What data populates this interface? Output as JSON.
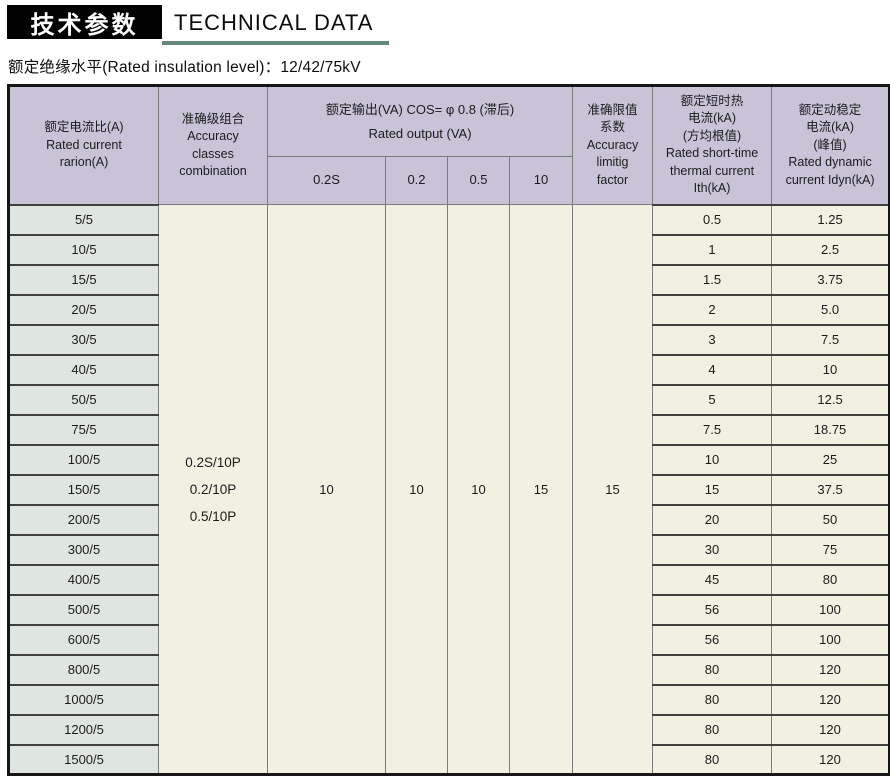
{
  "page": {
    "title_cn": "技术参数",
    "title_en": "TECHNICAL DATA",
    "subtitle": "额定绝缘水平(Rated insulation level)：12/42/75kV"
  },
  "colors": {
    "header_bg": "#c9c3d8",
    "ratio_col_bg": "#dfe6df",
    "body_cell_bg": "#f1f0e1",
    "accent_underline": "#5f8a7d",
    "title_box_bg": "#000000"
  },
  "table": {
    "headers": {
      "ratio": "额定电流比(A)\nRated current\nrarion(A)",
      "accuracy_classes": "准确级组合\nAccuracy\nclasses\ncombination",
      "output_group": "额定输出(VA) COS= φ 0.8 (滞后)\nRated output (VA)",
      "output_subs": [
        "0.2S",
        "0.2",
        "0.5",
        "10"
      ],
      "accuracy_limit_factor": "准确限值\n系数\nAccuracy\nlimitig\nfactor",
      "thermal": "额定短时热\n电流(kA)\n(方均根值)\nRated short-time\nthermal current\nIth(kA)",
      "dynamic": "额定动稳定\n电流(kA)\n(峰值)\nRated dynamic\ncurrent Idyn(kA)"
    },
    "merged": {
      "accuracy_combination": "0.2S/10P\n0.2/10P\n0.5/10P",
      "outputs": [
        "10",
        "10",
        "10",
        "15"
      ],
      "accuracy_limit_factor": "15"
    },
    "rows": [
      {
        "ratio": "5/5",
        "ith": "0.5",
        "idyn": "1.25"
      },
      {
        "ratio": "10/5",
        "ith": "1",
        "idyn": "2.5"
      },
      {
        "ratio": "15/5",
        "ith": "1.5",
        "idyn": "3.75"
      },
      {
        "ratio": "20/5",
        "ith": "2",
        "idyn": "5.0"
      },
      {
        "ratio": "30/5",
        "ith": "3",
        "idyn": "7.5"
      },
      {
        "ratio": "40/5",
        "ith": "4",
        "idyn": "10"
      },
      {
        "ratio": "50/5",
        "ith": "5",
        "idyn": "12.5"
      },
      {
        "ratio": "75/5",
        "ith": "7.5",
        "idyn": "18.75"
      },
      {
        "ratio": "100/5",
        "ith": "10",
        "idyn": "25"
      },
      {
        "ratio": "150/5",
        "ith": "15",
        "idyn": "37.5"
      },
      {
        "ratio": "200/5",
        "ith": "20",
        "idyn": "50"
      },
      {
        "ratio": "300/5",
        "ith": "30",
        "idyn": "75"
      },
      {
        "ratio": "400/5",
        "ith": "45",
        "idyn": "80"
      },
      {
        "ratio": "500/5",
        "ith": "56",
        "idyn": "100"
      },
      {
        "ratio": "600/5",
        "ith": "56",
        "idyn": "100"
      },
      {
        "ratio": "800/5",
        "ith": "80",
        "idyn": "120"
      },
      {
        "ratio": "1000/5",
        "ith": "80",
        "idyn": "120"
      },
      {
        "ratio": "1200/5",
        "ith": "80",
        "idyn": "120"
      },
      {
        "ratio": "1500/5",
        "ith": "80",
        "idyn": "120"
      }
    ]
  }
}
